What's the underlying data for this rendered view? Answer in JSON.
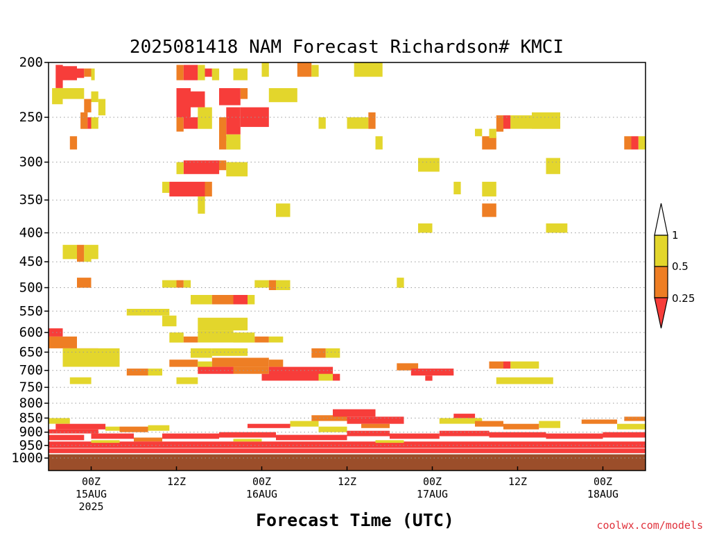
{
  "chart_data": {
    "type": "heatmap",
    "title": "2025081418 NAM Forecast Richardson# KMCI",
    "xlabel": "Forecast Time (UTC)",
    "ylabel": "",
    "credit": "coolwx.com/models",
    "y_axis": {
      "scale": "log-pressure",
      "range": [
        200,
        1000
      ],
      "ticks": [
        "200",
        "250",
        "300",
        "350",
        "400",
        "450",
        "500",
        "550",
        "600",
        "650",
        "700",
        "750",
        "800",
        "850",
        "900",
        "950",
        "1000"
      ],
      "dotted_gridlines": true
    },
    "x_axis": {
      "range_hours": [
        0,
        84
      ],
      "ticks": [
        {
          "hour": 6,
          "line1": "00Z",
          "line2": "15AUG",
          "line3": "2025"
        },
        {
          "hour": 18,
          "line1": "12Z",
          "line2": "",
          "line3": ""
        },
        {
          "hour": 30,
          "line1": "00Z",
          "line2": "16AUG",
          "line3": ""
        },
        {
          "hour": 42,
          "line1": "12Z",
          "line2": "",
          "line3": ""
        },
        {
          "hour": 54,
          "line1": "00Z",
          "line2": "17AUG",
          "line3": ""
        },
        {
          "hour": 66,
          "line1": "12Z",
          "line2": "",
          "line3": ""
        },
        {
          "hour": 78,
          "line1": "00Z",
          "line2": "18AUG",
          "line3": ""
        }
      ]
    },
    "legend": {
      "position": "right",
      "thresholds": [
        "1",
        "0.5",
        "0.25"
      ],
      "bins": [
        {
          "range": "> 1",
          "color": "#ffffff"
        },
        {
          "range": "0.5 - 1",
          "color": "#e3d62c"
        },
        {
          "range": "0.25 - 0.5",
          "color": "#ee7e24"
        },
        {
          "range": "< 0.25",
          "color": "#f73d3a"
        }
      ]
    },
    "colors": {
      "high": "#e3d62c",
      "mid": "#ee7e24",
      "low": "#f73d3a",
      "ground": "#9b4e2a"
    },
    "cells": [
      [
        1,
        2,
        202,
        222,
        "low"
      ],
      [
        2,
        4,
        203,
        215,
        "low"
      ],
      [
        4,
        5,
        205,
        213,
        "low"
      ],
      [
        5,
        6,
        205,
        212,
        "mid"
      ],
      [
        6,
        6.5,
        205,
        215,
        "high"
      ],
      [
        0.5,
        2,
        222,
        237,
        "high"
      ],
      [
        2,
        5,
        222,
        232,
        "high"
      ],
      [
        6,
        7,
        225,
        235,
        "high"
      ],
      [
        7,
        8,
        232,
        248,
        "high"
      ],
      [
        5,
        6,
        232,
        245,
        "mid"
      ],
      [
        4.5,
        5.5,
        245,
        262,
        "mid"
      ],
      [
        5.5,
        6,
        250,
        262,
        "low"
      ],
      [
        6,
        7,
        250,
        262,
        "high"
      ],
      [
        3,
        4,
        270,
        285,
        "mid"
      ],
      [
        18,
        19,
        202,
        215,
        "mid"
      ],
      [
        19,
        21,
        202,
        215,
        "low"
      ],
      [
        21,
        22,
        202,
        215,
        "high"
      ],
      [
        22,
        23,
        205,
        212,
        "low"
      ],
      [
        23,
        24,
        205,
        215,
        "high"
      ],
      [
        18,
        20,
        222,
        250,
        "low"
      ],
      [
        20,
        22,
        225,
        240,
        "low"
      ],
      [
        18,
        19,
        250,
        265,
        "mid"
      ],
      [
        19,
        21,
        250,
        262,
        "low"
      ],
      [
        21,
        23,
        240,
        262,
        "high"
      ],
      [
        24,
        27,
        222,
        238,
        "low"
      ],
      [
        27,
        28,
        222,
        232,
        "mid"
      ],
      [
        25,
        27,
        240,
        268,
        "low"
      ],
      [
        27,
        31,
        240,
        260,
        "low"
      ],
      [
        24,
        25,
        250,
        275,
        "mid"
      ],
      [
        25,
        27,
        268,
        285,
        "high"
      ],
      [
        24,
        25,
        270,
        285,
        "mid"
      ],
      [
        26,
        28,
        205,
        215,
        "high"
      ],
      [
        30,
        31,
        200,
        212,
        "high"
      ],
      [
        35,
        37,
        200,
        212,
        "mid"
      ],
      [
        37,
        38,
        202,
        212,
        "high"
      ],
      [
        31,
        34,
        222,
        235,
        "high"
      ],
      [
        34,
        35,
        222,
        235,
        "high"
      ],
      [
        43,
        47,
        200,
        212,
        "high"
      ],
      [
        38,
        39,
        250,
        262,
        "high"
      ],
      [
        42,
        45,
        250,
        262,
        "high"
      ],
      [
        45,
        46,
        245,
        262,
        "mid"
      ],
      [
        46,
        47,
        270,
        285,
        "high"
      ],
      [
        61,
        63,
        270,
        285,
        "mid"
      ],
      [
        63,
        64,
        248,
        265,
        "mid"
      ],
      [
        64,
        65,
        248,
        262,
        "low"
      ],
      [
        65,
        68,
        248,
        262,
        "high"
      ],
      [
        68,
        72,
        245,
        262,
        "high"
      ],
      [
        62,
        63,
        262,
        272,
        "high"
      ],
      [
        60,
        61,
        262,
        270,
        "high"
      ],
      [
        81,
        82,
        270,
        285,
        "mid"
      ],
      [
        82,
        83,
        270,
        285,
        "low"
      ],
      [
        83,
        84,
        270,
        285,
        "high"
      ],
      [
        19,
        24,
        298,
        315,
        "low"
      ],
      [
        24,
        25,
        298,
        310,
        "mid"
      ],
      [
        25,
        28,
        300,
        318,
        "high"
      ],
      [
        18,
        19,
        300,
        315,
        "high"
      ],
      [
        16,
        17,
        325,
        340,
        "high"
      ],
      [
        17,
        22,
        325,
        345,
        "low"
      ],
      [
        22,
        23,
        325,
        345,
        "mid"
      ],
      [
        21,
        22,
        345,
        370,
        "high"
      ],
      [
        52,
        55,
        295,
        312,
        "high"
      ],
      [
        70,
        72,
        295,
        315,
        "high"
      ],
      [
        57,
        58,
        325,
        342,
        "high"
      ],
      [
        61,
        63,
        325,
        345,
        "high"
      ],
      [
        61,
        63,
        355,
        375,
        "mid"
      ],
      [
        32,
        34,
        355,
        375,
        "high"
      ],
      [
        52,
        54,
        385,
        400,
        "high"
      ],
      [
        70,
        73,
        385,
        400,
        "high"
      ],
      [
        2,
        4,
        420,
        445,
        "high"
      ],
      [
        4,
        5,
        420,
        450,
        "mid"
      ],
      [
        5,
        6,
        420,
        450,
        "high"
      ],
      [
        6,
        7,
        420,
        445,
        "high"
      ],
      [
        4,
        6,
        480,
        500,
        "mid"
      ],
      [
        16,
        18,
        485,
        500,
        "high"
      ],
      [
        18,
        19,
        485,
        500,
        "mid"
      ],
      [
        19,
        20,
        485,
        500,
        "high"
      ],
      [
        29,
        31,
        485,
        500,
        "high"
      ],
      [
        31,
        32,
        485,
        505,
        "mid"
      ],
      [
        32,
        34,
        485,
        505,
        "high"
      ],
      [
        49,
        50,
        480,
        500,
        "high"
      ],
      [
        20,
        23,
        515,
        535,
        "high"
      ],
      [
        23,
        26,
        515,
        535,
        "mid"
      ],
      [
        26,
        28,
        515,
        535,
        "low"
      ],
      [
        28,
        29,
        515,
        535,
        "high"
      ],
      [
        11,
        17,
        545,
        560,
        "high"
      ],
      [
        16,
        18,
        560,
        585,
        "high"
      ],
      [
        21,
        28,
        565,
        595,
        "high"
      ],
      [
        21,
        26,
        595,
        625,
        "high"
      ],
      [
        17,
        19,
        600,
        625,
        "high"
      ],
      [
        19,
        21,
        610,
        625,
        "mid"
      ],
      [
        26,
        29,
        600,
        625,
        "high"
      ],
      [
        29,
        31,
        610,
        625,
        "mid"
      ],
      [
        31,
        33,
        610,
        625,
        "high"
      ],
      [
        0,
        2,
        590,
        610,
        "low"
      ],
      [
        0,
        4,
        610,
        640,
        "mid"
      ],
      [
        3,
        7,
        640,
        660,
        "low"
      ],
      [
        2,
        9,
        660,
        690,
        "mid"
      ],
      [
        2,
        10,
        640,
        690,
        "high"
      ],
      [
        20,
        23,
        640,
        665,
        "high"
      ],
      [
        23,
        28,
        640,
        660,
        "high"
      ],
      [
        37,
        39,
        640,
        665,
        "mid"
      ],
      [
        39,
        41,
        640,
        665,
        "high"
      ],
      [
        17,
        21,
        670,
        690,
        "mid"
      ],
      [
        21,
        23,
        675,
        695,
        "high"
      ],
      [
        23,
        31,
        665,
        690,
        "mid"
      ],
      [
        31,
        33,
        670,
        690,
        "mid"
      ],
      [
        21,
        26,
        690,
        710,
        "low"
      ],
      [
        26,
        31,
        690,
        710,
        "mid"
      ],
      [
        31,
        40,
        690,
        720,
        "low"
      ],
      [
        30,
        38,
        710,
        730,
        "low"
      ],
      [
        11,
        14,
        695,
        715,
        "mid"
      ],
      [
        14,
        16,
        695,
        715,
        "high"
      ],
      [
        38,
        40,
        710,
        730,
        "high"
      ],
      [
        40,
        41,
        710,
        730,
        "low"
      ],
      [
        49,
        52,
        680,
        700,
        "mid"
      ],
      [
        51,
        54,
        695,
        715,
        "low"
      ],
      [
        54,
        57,
        695,
        715,
        "low"
      ],
      [
        53,
        54,
        715,
        730,
        "low"
      ],
      [
        62,
        64,
        675,
        695,
        "mid"
      ],
      [
        64,
        65,
        675,
        695,
        "low"
      ],
      [
        65,
        69,
        675,
        695,
        "high"
      ],
      [
        18,
        21,
        720,
        740,
        "high"
      ],
      [
        63,
        71,
        720,
        740,
        "high"
      ],
      [
        3,
        6,
        720,
        740,
        "high"
      ],
      [
        0,
        3,
        850,
        870,
        "high"
      ],
      [
        1,
        8,
        870,
        890,
        "low"
      ],
      [
        0,
        7,
        890,
        905,
        "low"
      ],
      [
        8,
        10,
        880,
        895,
        "high"
      ],
      [
        10,
        14,
        880,
        900,
        "mid"
      ],
      [
        14,
        17,
        875,
        895,
        "high"
      ],
      [
        28,
        34,
        870,
        885,
        "low"
      ],
      [
        34,
        38,
        860,
        880,
        "high"
      ],
      [
        37,
        42,
        840,
        860,
        "mid"
      ],
      [
        40,
        46,
        820,
        845,
        "low"
      ],
      [
        42,
        50,
        845,
        870,
        "low"
      ],
      [
        38,
        42,
        880,
        900,
        "high"
      ],
      [
        44,
        48,
        870,
        885,
        "mid"
      ],
      [
        55,
        61,
        850,
        870,
        "high"
      ],
      [
        60,
        64,
        860,
        880,
        "mid"
      ],
      [
        64,
        69,
        870,
        890,
        "mid"
      ],
      [
        69,
        72,
        860,
        885,
        "high"
      ],
      [
        75,
        80,
        855,
        870,
        "mid"
      ],
      [
        80,
        84,
        870,
        890,
        "high"
      ],
      [
        81,
        84,
        845,
        860,
        "mid"
      ],
      [
        57,
        60,
        835,
        850,
        "low"
      ],
      [
        0,
        5,
        910,
        930,
        "low"
      ],
      [
        6,
        12,
        905,
        925,
        "low"
      ],
      [
        12,
        16,
        920,
        935,
        "mid"
      ],
      [
        16,
        24,
        905,
        925,
        "low"
      ],
      [
        24,
        32,
        900,
        920,
        "low"
      ],
      [
        32,
        42,
        910,
        930,
        "low"
      ],
      [
        42,
        48,
        895,
        915,
        "low"
      ],
      [
        48,
        55,
        905,
        925,
        "low"
      ],
      [
        55,
        62,
        895,
        915,
        "low"
      ],
      [
        62,
        70,
        900,
        920,
        "low"
      ],
      [
        70,
        78,
        905,
        925,
        "low"
      ],
      [
        78,
        84,
        900,
        920,
        "low"
      ],
      [
        0,
        84,
        935,
        960,
        "low"
      ],
      [
        0,
        84,
        962,
        980,
        "low"
      ],
      [
        6,
        10,
        930,
        940,
        "high"
      ],
      [
        26,
        30,
        925,
        935,
        "high"
      ],
      [
        46,
        50,
        930,
        940,
        "high"
      ]
    ]
  }
}
